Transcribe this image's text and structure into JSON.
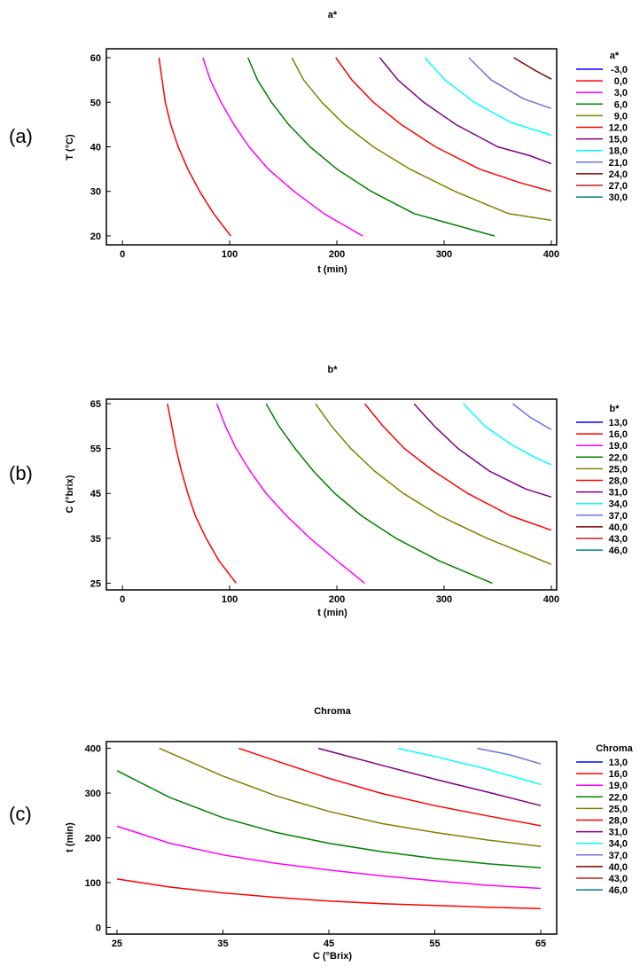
{
  "chart_data": [
    {
      "type": "line",
      "panel_label": "(a)",
      "title": "a*",
      "xlabel": "t (min)",
      "ylabel": "T (°C)",
      "xlim": [
        -15,
        405
      ],
      "ylim": [
        18,
        62
      ],
      "xticks": [
        0,
        100,
        200,
        300,
        400
      ],
      "xtick_labels": [
        "0",
        "100",
        "200",
        "300",
        "400"
      ],
      "yticks": [
        20,
        30,
        40,
        50,
        60
      ],
      "ytick_labels": [
        "20",
        "30",
        "40",
        "50",
        "60"
      ],
      "grid": false,
      "legend_position": "right",
      "legend_title": "a*",
      "legend": [
        {
          "label": "-3,0",
          "color": "#0000ff"
        },
        {
          "label": "0,0",
          "color": "#ff0000"
        },
        {
          "label": "3,0",
          "color": "#ff00ff"
        },
        {
          "label": "6,0",
          "color": "#008000"
        },
        {
          "label": "9,0",
          "color": "#808000"
        },
        {
          "label": "12,0",
          "color": "#ff0000"
        },
        {
          "label": "15,0",
          "color": "#800080"
        },
        {
          "label": "18,0",
          "color": "#00ffff"
        },
        {
          "label": "21,0",
          "color": "#7070e0"
        },
        {
          "label": "24,0",
          "color": "#800000"
        },
        {
          "label": "27,0",
          "color": "#c02020"
        },
        {
          "label": "30,0",
          "color": "#008080"
        }
      ],
      "series": [
        {
          "color": "#ff0000",
          "points": [
            [
              34,
              60
            ],
            [
              37,
              55
            ],
            [
              40,
              50
            ],
            [
              45,
              45
            ],
            [
              52,
              40
            ],
            [
              61,
              35
            ],
            [
              72,
              30
            ],
            [
              85,
              25
            ],
            [
              101,
              20
            ]
          ]
        },
        {
          "color": "#ff00ff",
          "points": [
            [
              75,
              60
            ],
            [
              82,
              55
            ],
            [
              92,
              50
            ],
            [
              104,
              45
            ],
            [
              118,
              40
            ],
            [
              136,
              35
            ],
            [
              160,
              30
            ],
            [
              188,
              25
            ],
            [
              224,
              20
            ]
          ]
        },
        {
          "color": "#008000",
          "points": [
            [
              117,
              60
            ],
            [
              126,
              55
            ],
            [
              139,
              50
            ],
            [
              155,
              45
            ],
            [
              175,
              40
            ],
            [
              200,
              35
            ],
            [
              232,
              30
            ],
            [
              272,
              25
            ],
            [
              347,
              20
            ]
          ]
        },
        {
          "color": "#808000",
          "points": [
            [
              158,
              60
            ],
            [
              169,
              55
            ],
            [
              186,
              50
            ],
            [
              207,
              45
            ],
            [
              234,
              40
            ],
            [
              268,
              35
            ],
            [
              310,
              30
            ],
            [
              360,
              25
            ],
            [
              400,
              23.5
            ]
          ]
        },
        {
          "color": "#ff0000",
          "points": [
            [
              199,
              60
            ],
            [
              214,
              55
            ],
            [
              234,
              50
            ],
            [
              260,
              45
            ],
            [
              292,
              40
            ],
            [
              333,
              35
            ],
            [
              370,
              32
            ],
            [
              400,
              30
            ]
          ]
        },
        {
          "color": "#800080",
          "points": [
            [
              240,
              60
            ],
            [
              257,
              55
            ],
            [
              281,
              50
            ],
            [
              311,
              45
            ],
            [
              350,
              40
            ],
            [
              380,
              38
            ],
            [
              400,
              36.2
            ]
          ]
        },
        {
          "color": "#00ffff",
          "points": [
            [
              282,
              60
            ],
            [
              301,
              55
            ],
            [
              328,
              50
            ],
            [
              362,
              45.5
            ],
            [
              400,
              42.6
            ]
          ]
        },
        {
          "color": "#7070e0",
          "points": [
            [
              323,
              60
            ],
            [
              344,
              55
            ],
            [
              374,
              50.8
            ],
            [
              400,
              48.6
            ]
          ]
        },
        {
          "color": "#800000",
          "points": [
            [
              365,
              60
            ],
            [
              386,
              57
            ],
            [
              400,
              55.2
            ]
          ]
        }
      ]
    },
    {
      "type": "line",
      "panel_label": "(b)",
      "title": "b*",
      "xlabel": "t (min)",
      "ylabel": "C (°brix)",
      "xlim": [
        -15,
        405
      ],
      "ylim": [
        23.5,
        66
      ],
      "xticks": [
        0,
        100,
        200,
        300,
        400
      ],
      "xtick_labels": [
        "0",
        "100",
        "200",
        "300",
        "400"
      ],
      "yticks": [
        25,
        35,
        45,
        55,
        65
      ],
      "ytick_labels": [
        "25",
        "35",
        "45",
        "55",
        "65"
      ],
      "grid": false,
      "legend_position": "right",
      "legend_title": "b*",
      "legend": [
        {
          "label": "13,0",
          "color": "#0000ff"
        },
        {
          "label": "16,0",
          "color": "#ff0000"
        },
        {
          "label": "19,0",
          "color": "#ff00ff"
        },
        {
          "label": "22,0",
          "color": "#008000"
        },
        {
          "label": "25,0",
          "color": "#808000"
        },
        {
          "label": "28,0",
          "color": "#ff0000"
        },
        {
          "label": "31,0",
          "color": "#800080"
        },
        {
          "label": "34,0",
          "color": "#00ffff"
        },
        {
          "label": "37,0",
          "color": "#7070e0"
        },
        {
          "label": "40,0",
          "color": "#800000"
        },
        {
          "label": "43,0",
          "color": "#c02020"
        },
        {
          "label": "46,0",
          "color": "#008080"
        }
      ],
      "series": [
        {
          "color": "#ff0000",
          "points": [
            [
              42,
              65
            ],
            [
              46,
              60
            ],
            [
              50,
              55
            ],
            [
              55,
              50
            ],
            [
              61,
              45
            ],
            [
              68,
              40
            ],
            [
              78,
              35
            ],
            [
              90,
              30
            ],
            [
              106,
              25
            ]
          ]
        },
        {
          "color": "#ff00ff",
          "points": [
            [
              88,
              65
            ],
            [
              96,
              60
            ],
            [
              106,
              55
            ],
            [
              119,
              50
            ],
            [
              134,
              45
            ],
            [
              153,
              40
            ],
            [
              175,
              35
            ],
            [
              200,
              30
            ],
            [
              226,
              25
            ]
          ]
        },
        {
          "color": "#008000",
          "points": [
            [
              134,
              65
            ],
            [
              146,
              60
            ],
            [
              161,
              55
            ],
            [
              178,
              50
            ],
            [
              198,
              45
            ],
            [
              223,
              40
            ],
            [
              255,
              35
            ],
            [
              295,
              30
            ],
            [
              345,
              25
            ]
          ]
        },
        {
          "color": "#808000",
          "points": [
            [
              180,
              65
            ],
            [
              195,
              60
            ],
            [
              213,
              55
            ],
            [
              235,
              50
            ],
            [
              262,
              45
            ],
            [
              296,
              40
            ],
            [
              340,
              35
            ],
            [
              400,
              29.2
            ]
          ]
        },
        {
          "color": "#ff0000",
          "points": [
            [
              226,
              65
            ],
            [
              243,
              60
            ],
            [
              263,
              55
            ],
            [
              290,
              50
            ],
            [
              322,
              45
            ],
            [
              362,
              40
            ],
            [
              400,
              36.8
            ]
          ]
        },
        {
          "color": "#800080",
          "points": [
            [
              272,
              65
            ],
            [
              291,
              60
            ],
            [
              313,
              55
            ],
            [
              342,
              50
            ],
            [
              376,
              46
            ],
            [
              400,
              44.2
            ]
          ]
        },
        {
          "color": "#00ffff",
          "points": [
            [
              318,
              65
            ],
            [
              338,
              60
            ],
            [
              362,
              56
            ],
            [
              385,
              53
            ],
            [
              400,
              51.4
            ]
          ]
        },
        {
          "color": "#7070e0",
          "points": [
            [
              364,
              65
            ],
            [
              380,
              62
            ],
            [
              400,
              59.2
            ]
          ]
        }
      ]
    },
    {
      "type": "line",
      "panel_label": "(c)",
      "title": "Chroma",
      "xlabel": "C (°Brix)",
      "ylabel": "t (min)",
      "xlim": [
        24,
        66.5
      ],
      "ylim": [
        -15,
        415
      ],
      "xticks": [
        25,
        35,
        45,
        55,
        65
      ],
      "xtick_labels": [
        "25",
        "35",
        "45",
        "55",
        "65"
      ],
      "yticks": [
        0,
        100,
        200,
        300,
        400
      ],
      "ytick_labels": [
        "0",
        "100",
        "200",
        "300",
        "400"
      ],
      "grid": false,
      "legend_position": "right",
      "legend_title": "Chroma",
      "legend": [
        {
          "label": "13,0",
          "color": "#0000ff"
        },
        {
          "label": "16,0",
          "color": "#ff0000"
        },
        {
          "label": "19,0",
          "color": "#ff00ff"
        },
        {
          "label": "22,0",
          "color": "#008000"
        },
        {
          "label": "25,0",
          "color": "#808000"
        },
        {
          "label": "28,0",
          "color": "#ff0000"
        },
        {
          "label": "31,0",
          "color": "#800080"
        },
        {
          "label": "34,0",
          "color": "#00ffff"
        },
        {
          "label": "37,0",
          "color": "#7070e0"
        },
        {
          "label": "40,0",
          "color": "#800000"
        },
        {
          "label": "43,0",
          "color": "#c02020"
        },
        {
          "label": "46,0",
          "color": "#008080"
        }
      ],
      "series": [
        {
          "color": "#ff0000",
          "points": [
            [
              25,
              108
            ],
            [
              30,
              90
            ],
            [
              35,
              77
            ],
            [
              40,
              67
            ],
            [
              45,
              59
            ],
            [
              50,
              53
            ],
            [
              55,
              49
            ],
            [
              60,
              45
            ],
            [
              65,
              42
            ]
          ]
        },
        {
          "color": "#ff00ff",
          "points": [
            [
              25,
              226
            ],
            [
              30,
              188
            ],
            [
              35,
              162
            ],
            [
              40,
              143
            ],
            [
              45,
              128
            ],
            [
              50,
              115
            ],
            [
              55,
              104
            ],
            [
              60,
              94
            ],
            [
              65,
              87
            ]
          ]
        },
        {
          "color": "#008000",
          "points": [
            [
              25,
              350
            ],
            [
              30,
              290
            ],
            [
              35,
              245
            ],
            [
              40,
              212
            ],
            [
              45,
              188
            ],
            [
              50,
              169
            ],
            [
              55,
              154
            ],
            [
              60,
              142
            ],
            [
              65,
              133
            ]
          ]
        },
        {
          "color": "#808000",
          "points": [
            [
              29,
              400
            ],
            [
              35,
              338
            ],
            [
              40,
              294
            ],
            [
              45,
              259
            ],
            [
              50,
              232
            ],
            [
              55,
              212
            ],
            [
              60,
              195
            ],
            [
              65,
              181
            ]
          ]
        },
        {
          "color": "#ff0000",
          "points": [
            [
              36.5,
              400
            ],
            [
              40,
              372
            ],
            [
              45,
              333
            ],
            [
              50,
              299
            ],
            [
              55,
              272
            ],
            [
              60,
              249
            ],
            [
              65,
              227
            ]
          ]
        },
        {
          "color": "#800080",
          "points": [
            [
              44,
              400
            ],
            [
              50,
              362
            ],
            [
              55,
              331
            ],
            [
              60,
              302
            ],
            [
              65,
              272
            ]
          ]
        },
        {
          "color": "#00ffff",
          "points": [
            [
              51.5,
              400
            ],
            [
              55,
              382
            ],
            [
              60,
              353
            ],
            [
              65,
              319
            ]
          ]
        },
        {
          "color": "#7070e0",
          "points": [
            [
              59,
              400
            ],
            [
              62,
              386
            ],
            [
              65,
              365
            ]
          ]
        }
      ]
    }
  ]
}
